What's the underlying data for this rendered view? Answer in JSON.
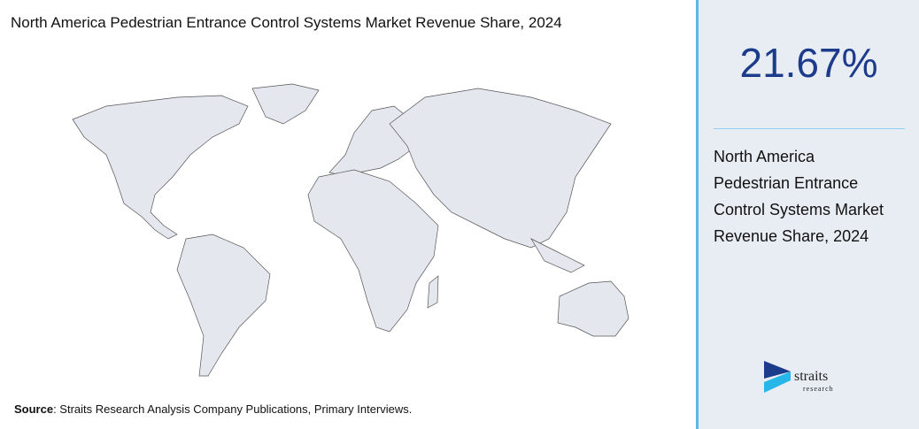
{
  "header": {
    "title": "North America Pedestrian Entrance Control Systems Market Revenue Share, 2024"
  },
  "stat": {
    "value": "21.67%",
    "description": "North America Pedestrian Entrance Control Systems Market Revenue Share, 2024"
  },
  "source": {
    "label": "Source",
    "text": ": Straits Research Analysis Company Publications, Primary Interviews."
  },
  "logo": {
    "name": "straits",
    "tagline": "research"
  }
}
